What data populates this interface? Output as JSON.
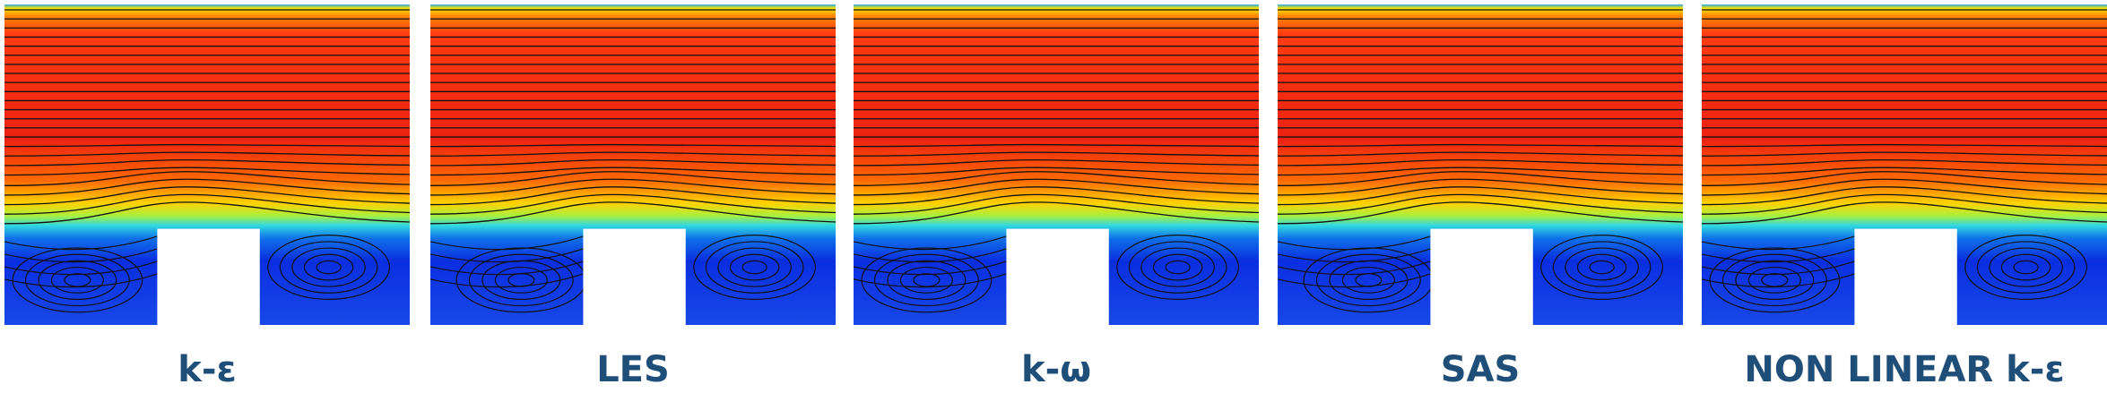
{
  "panels": [
    {
      "label": "k-ε"
    },
    {
      "label": "LES"
    },
    {
      "label": "k-ω"
    },
    {
      "label": "SAS"
    },
    {
      "label": "NON LINEAR k-ε"
    }
  ]
}
